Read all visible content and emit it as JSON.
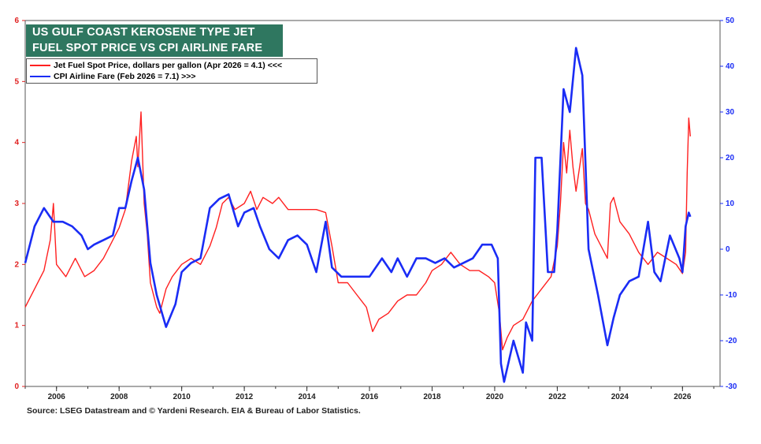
{
  "title_lines": [
    "US GULF COAST KEROSENE TYPE JET",
    "FUEL SPOT PRICE VS CPI AIRLINE FARE"
  ],
  "source": "Source: LSEG Datastream and © Yardeni Research. EIA & Bureau of Labor Statistics.",
  "colors": {
    "jet": "#ff2020",
    "cpi": "#1a2cf5",
    "title_bg": "#2f7760",
    "left_axis": "#e02020",
    "right_axis": "#1a2cf5"
  },
  "chart_data": {
    "type": "line",
    "title": "US GULF COAST KEROSENE TYPE JET FUEL SPOT PRICE VS CPI AIRLINE FARE",
    "xlabel": "",
    "ylabel_left": "",
    "ylabel_right": "",
    "xlim": [
      2005,
      2027.2
    ],
    "ylim_left": [
      0,
      6
    ],
    "ylim_right": [
      -30,
      50
    ],
    "x_ticks": [
      "2006",
      "2008",
      "2010",
      "2012",
      "2014",
      "2016",
      "2018",
      "2020",
      "2022",
      "2024",
      "2026"
    ],
    "left_ticks": [
      "0",
      "1",
      "2",
      "3",
      "4",
      "5",
      "6"
    ],
    "right_ticks": [
      "-30",
      "-20",
      "-10",
      "0",
      "10",
      "20",
      "30",
      "40",
      "50"
    ],
    "series": [
      {
        "name": "Jet Fuel Spot Price, dollars per gallon (Apr 2026 = 4.1) <<<",
        "axis": "left",
        "points": [
          [
            2005.0,
            1.3
          ],
          [
            2005.3,
            1.6
          ],
          [
            2005.6,
            1.9
          ],
          [
            2005.8,
            2.4
          ],
          [
            2005.9,
            3.0
          ],
          [
            2006.0,
            2.0
          ],
          [
            2006.3,
            1.8
          ],
          [
            2006.6,
            2.1
          ],
          [
            2006.9,
            1.8
          ],
          [
            2007.2,
            1.9
          ],
          [
            2007.5,
            2.1
          ],
          [
            2007.8,
            2.4
          ],
          [
            2008.0,
            2.6
          ],
          [
            2008.2,
            2.9
          ],
          [
            2008.4,
            3.7
          ],
          [
            2008.55,
            4.1
          ],
          [
            2008.6,
            3.6
          ],
          [
            2008.7,
            4.5
          ],
          [
            2008.8,
            3.0
          ],
          [
            2008.9,
            2.5
          ],
          [
            2009.0,
            1.7
          ],
          [
            2009.2,
            1.3
          ],
          [
            2009.3,
            1.2
          ],
          [
            2009.5,
            1.6
          ],
          [
            2009.7,
            1.8
          ],
          [
            2010.0,
            2.0
          ],
          [
            2010.3,
            2.1
          ],
          [
            2010.6,
            2.0
          ],
          [
            2010.9,
            2.3
          ],
          [
            2011.1,
            2.6
          ],
          [
            2011.3,
            3.0
          ],
          [
            2011.5,
            3.1
          ],
          [
            2011.7,
            2.9
          ],
          [
            2012.0,
            3.0
          ],
          [
            2012.2,
            3.2
          ],
          [
            2012.4,
            2.9
          ],
          [
            2012.6,
            3.1
          ],
          [
            2012.9,
            3.0
          ],
          [
            2013.1,
            3.1
          ],
          [
            2013.4,
            2.9
          ],
          [
            2013.7,
            2.9
          ],
          [
            2014.0,
            2.9
          ],
          [
            2014.3,
            2.9
          ],
          [
            2014.6,
            2.85
          ],
          [
            2014.8,
            2.3
          ],
          [
            2015.0,
            1.7
          ],
          [
            2015.3,
            1.7
          ],
          [
            2015.6,
            1.5
          ],
          [
            2015.9,
            1.3
          ],
          [
            2016.1,
            0.9
          ],
          [
            2016.3,
            1.1
          ],
          [
            2016.6,
            1.2
          ],
          [
            2016.9,
            1.4
          ],
          [
            2017.2,
            1.5
          ],
          [
            2017.5,
            1.5
          ],
          [
            2017.8,
            1.7
          ],
          [
            2018.0,
            1.9
          ],
          [
            2018.3,
            2.0
          ],
          [
            2018.6,
            2.2
          ],
          [
            2018.9,
            2.0
          ],
          [
            2019.2,
            1.9
          ],
          [
            2019.5,
            1.9
          ],
          [
            2019.8,
            1.8
          ],
          [
            2020.0,
            1.7
          ],
          [
            2020.15,
            1.2
          ],
          [
            2020.25,
            0.6
          ],
          [
            2020.4,
            0.8
          ],
          [
            2020.6,
            1.0
          ],
          [
            2020.9,
            1.1
          ],
          [
            2021.2,
            1.4
          ],
          [
            2021.5,
            1.6
          ],
          [
            2021.8,
            1.8
          ],
          [
            2022.0,
            2.3
          ],
          [
            2022.1,
            3.0
          ],
          [
            2022.2,
            4.0
          ],
          [
            2022.3,
            3.5
          ],
          [
            2022.4,
            4.2
          ],
          [
            2022.5,
            3.6
          ],
          [
            2022.6,
            3.2
          ],
          [
            2022.8,
            3.9
          ],
          [
            2022.9,
            3.0
          ],
          [
            2023.0,
            2.9
          ],
          [
            2023.2,
            2.5
          ],
          [
            2023.4,
            2.3
          ],
          [
            2023.6,
            2.1
          ],
          [
            2023.7,
            3.0
          ],
          [
            2023.8,
            3.1
          ],
          [
            2024.0,
            2.7
          ],
          [
            2024.3,
            2.5
          ],
          [
            2024.6,
            2.2
          ],
          [
            2024.9,
            2.0
          ],
          [
            2025.2,
            2.2
          ],
          [
            2025.5,
            2.1
          ],
          [
            2025.8,
            2.0
          ],
          [
            2026.0,
            1.85
          ],
          [
            2026.1,
            2.2
          ],
          [
            2026.15,
            3.5
          ],
          [
            2026.2,
            4.4
          ],
          [
            2026.25,
            4.1
          ]
        ]
      },
      {
        "name": "CPI Airline Fare (Feb 2026 = 7.1) >>>",
        "axis": "right",
        "points": [
          [
            2005.0,
            -3
          ],
          [
            2005.3,
            5
          ],
          [
            2005.6,
            9
          ],
          [
            2005.9,
            6
          ],
          [
            2006.2,
            6
          ],
          [
            2006.5,
            5
          ],
          [
            2006.8,
            3
          ],
          [
            2007.0,
            0
          ],
          [
            2007.2,
            1
          ],
          [
            2007.5,
            2
          ],
          [
            2007.8,
            3
          ],
          [
            2008.0,
            9
          ],
          [
            2008.2,
            9
          ],
          [
            2008.4,
            15
          ],
          [
            2008.6,
            20
          ],
          [
            2008.8,
            13
          ],
          [
            2009.0,
            -3
          ],
          [
            2009.2,
            -10
          ],
          [
            2009.5,
            -17
          ],
          [
            2009.8,
            -12
          ],
          [
            2010.0,
            -5
          ],
          [
            2010.3,
            -3
          ],
          [
            2010.6,
            -2
          ],
          [
            2010.9,
            9
          ],
          [
            2011.2,
            11
          ],
          [
            2011.5,
            12
          ],
          [
            2011.8,
            5
          ],
          [
            2012.0,
            8
          ],
          [
            2012.3,
            9
          ],
          [
            2012.5,
            5
          ],
          [
            2012.8,
            0
          ],
          [
            2013.1,
            -2
          ],
          [
            2013.4,
            2
          ],
          [
            2013.7,
            3
          ],
          [
            2014.0,
            1
          ],
          [
            2014.3,
            -5
          ],
          [
            2014.6,
            6
          ],
          [
            2014.8,
            -4
          ],
          [
            2015.1,
            -6
          ],
          [
            2015.4,
            -6
          ],
          [
            2015.7,
            -6
          ],
          [
            2016.0,
            -6
          ],
          [
            2016.4,
            -2
          ],
          [
            2016.7,
            -5
          ],
          [
            2016.9,
            -2
          ],
          [
            2017.2,
            -6
          ],
          [
            2017.5,
            -2
          ],
          [
            2017.8,
            -2
          ],
          [
            2018.1,
            -3
          ],
          [
            2018.4,
            -2
          ],
          [
            2018.7,
            -4
          ],
          [
            2019.0,
            -3
          ],
          [
            2019.3,
            -2
          ],
          [
            2019.6,
            1
          ],
          [
            2019.9,
            1
          ],
          [
            2020.1,
            -2
          ],
          [
            2020.2,
            -25
          ],
          [
            2020.3,
            -29
          ],
          [
            2020.6,
            -20
          ],
          [
            2020.9,
            -27
          ],
          [
            2021.0,
            -16
          ],
          [
            2021.2,
            -20
          ],
          [
            2021.3,
            20
          ],
          [
            2021.5,
            20
          ],
          [
            2021.7,
            -5
          ],
          [
            2021.9,
            -5
          ],
          [
            2022.0,
            4
          ],
          [
            2022.2,
            35
          ],
          [
            2022.4,
            30
          ],
          [
            2022.6,
            44
          ],
          [
            2022.8,
            38
          ],
          [
            2023.0,
            0
          ],
          [
            2023.3,
            -10
          ],
          [
            2023.6,
            -21
          ],
          [
            2023.8,
            -15
          ],
          [
            2024.0,
            -10
          ],
          [
            2024.3,
            -7
          ],
          [
            2024.6,
            -6
          ],
          [
            2024.9,
            6
          ],
          [
            2025.1,
            -5
          ],
          [
            2025.3,
            -7
          ],
          [
            2025.6,
            3
          ],
          [
            2025.9,
            -2
          ],
          [
            2026.0,
            -5
          ],
          [
            2026.1,
            5
          ],
          [
            2026.2,
            8
          ],
          [
            2026.25,
            7.1
          ]
        ]
      }
    ]
  }
}
